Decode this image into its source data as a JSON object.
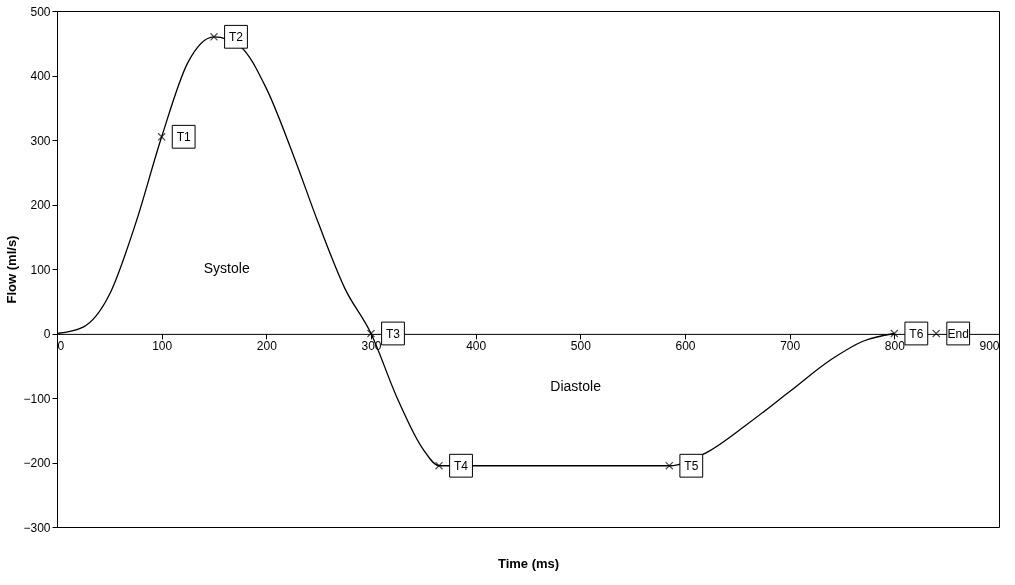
{
  "chart_data": {
    "type": "line",
    "xlabel": "Time (ms)",
    "ylabel": "Flow (ml/s)",
    "xlim": [
      0,
      900
    ],
    "xticks": [
      0,
      100,
      200,
      300,
      400,
      500,
      600,
      700,
      800,
      900
    ],
    "ylim": [
      -300,
      500
    ],
    "yticks": [
      -300,
      -200,
      -100,
      0,
      100,
      200,
      300,
      400,
      500
    ],
    "grid": false,
    "series": [
      {
        "type": "line",
        "color": "#000000",
        "line_style": "solid",
        "x": [
          0,
          25,
          50,
          75,
          100,
          125,
          150,
          175,
          200,
          225,
          250,
          275,
          300,
          325,
          350,
          365,
          585,
          620,
          660,
          700,
          740,
          770,
          800
        ],
        "values": [
          0,
          10,
          60,
          170,
          305,
          420,
          460,
          445,
          380,
          280,
          170,
          70,
          0,
          -100,
          -180,
          -205,
          -205,
          -185,
          -140,
          -90,
          -40,
          -12,
          0
        ]
      },
      {
        "type": "scatter",
        "color": "#000000",
        "marker": "cross",
        "x": [
          100,
          150,
          300,
          365,
          585,
          800,
          840
        ],
        "values": [
          305,
          460,
          0,
          -205,
          -205,
          0,
          0
        ]
      }
    ],
    "annotations": [
      {
        "text": "T1",
        "x": 100,
        "y": 305
      },
      {
        "text": "T2",
        "x": 150,
        "y": 460
      },
      {
        "text": "T3",
        "x": 300,
        "y": 0
      },
      {
        "text": "T4",
        "x": 365,
        "y": -205
      },
      {
        "text": "T5",
        "x": 585,
        "y": -205
      },
      {
        "text": "T6",
        "x": 800,
        "y": 0
      },
      {
        "text": "End",
        "x": 840,
        "y": 0
      },
      "Systole",
      "Diastole"
    ]
  }
}
